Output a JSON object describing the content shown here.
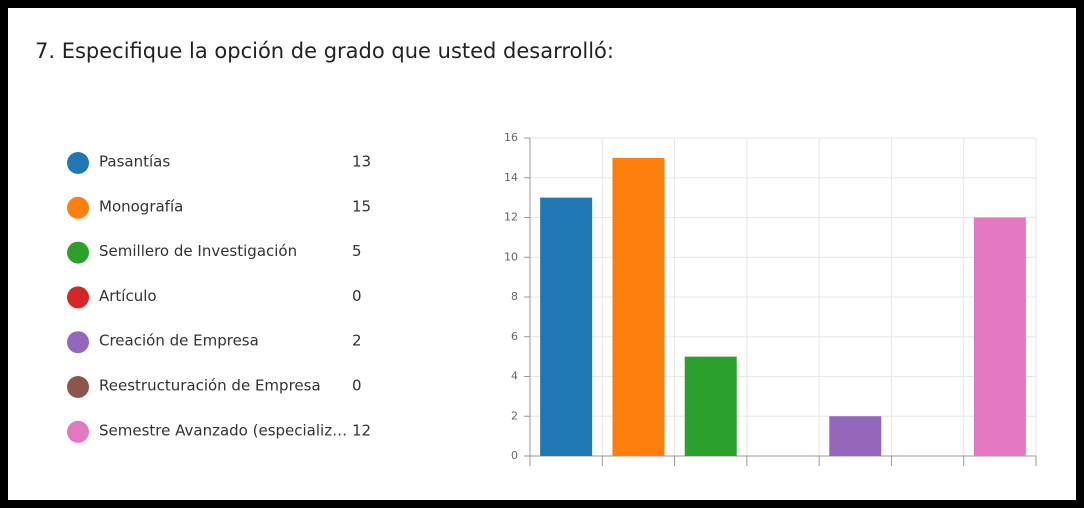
{
  "chart_data": {
    "type": "bar",
    "title": "7.  Especifique la opción de grado que usted desarrolló:",
    "categories": [
      "Pasantías",
      "Monografía",
      "Semillero de Investigación",
      "Artículo",
      "Creación de Empresa",
      "Reestructuración de Empresa",
      "Semestre Avanzado (especializ…"
    ],
    "values": [
      13,
      15,
      5,
      0,
      2,
      0,
      12
    ],
    "colors": [
      "#1f77b4",
      "#ff7f0e",
      "#2ca02c",
      "#d62728",
      "#9467bd",
      "#8c564b",
      "#e377c2"
    ],
    "ylim": [
      0,
      16
    ],
    "yticks": [
      0,
      2,
      4,
      6,
      8,
      10,
      12,
      14,
      16
    ],
    "grid": true
  }
}
